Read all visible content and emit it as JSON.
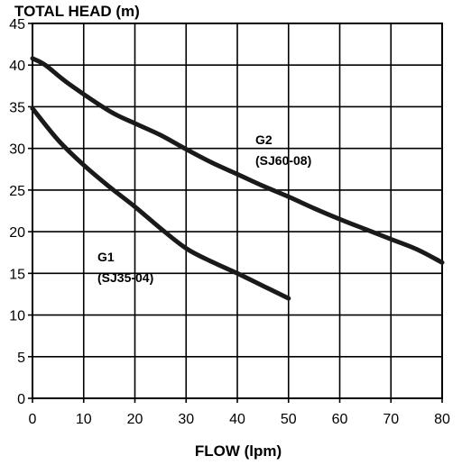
{
  "chart_data": {
    "type": "line",
    "title": "TOTAL HEAD (m)",
    "xlabel": "FLOW (lpm)",
    "ylabel": "TOTAL HEAD (m)",
    "xlim": [
      0,
      80
    ],
    "ylim": [
      0,
      45
    ],
    "xticks": [
      "0",
      "10",
      "20",
      "30",
      "40",
      "50",
      "60",
      "70",
      "80"
    ],
    "yticks": [
      "0",
      "5",
      "10",
      "15",
      "20",
      "25",
      "30",
      "35",
      "40",
      "45"
    ],
    "grid": true,
    "legend": "none",
    "series": [
      {
        "name": "G1",
        "model": "(SJ35-04)",
        "x": [
          0,
          5,
          10,
          15,
          20,
          25,
          30,
          35,
          40,
          45,
          50
        ],
        "y": [
          34.8,
          31.0,
          28.0,
          25.4,
          23.0,
          20.4,
          18.0,
          16.4,
          15.0,
          13.5,
          12.0
        ]
      },
      {
        "name": "G2",
        "model": "(SJ60-08)",
        "x": [
          0,
          2.5,
          7,
          15,
          20,
          25,
          30,
          35,
          40,
          45,
          50,
          55,
          60,
          65,
          70,
          75,
          80
        ],
        "y": [
          40.8,
          40.0,
          37.8,
          34.5,
          33.0,
          31.6,
          29.9,
          28.3,
          26.9,
          25.5,
          24.2,
          22.8,
          21.5,
          20.3,
          19.1,
          17.9,
          16.3
        ]
      }
    ]
  },
  "colors": {
    "line": "#1a1a1a",
    "grid": "#000000",
    "background": "#ffffff"
  }
}
